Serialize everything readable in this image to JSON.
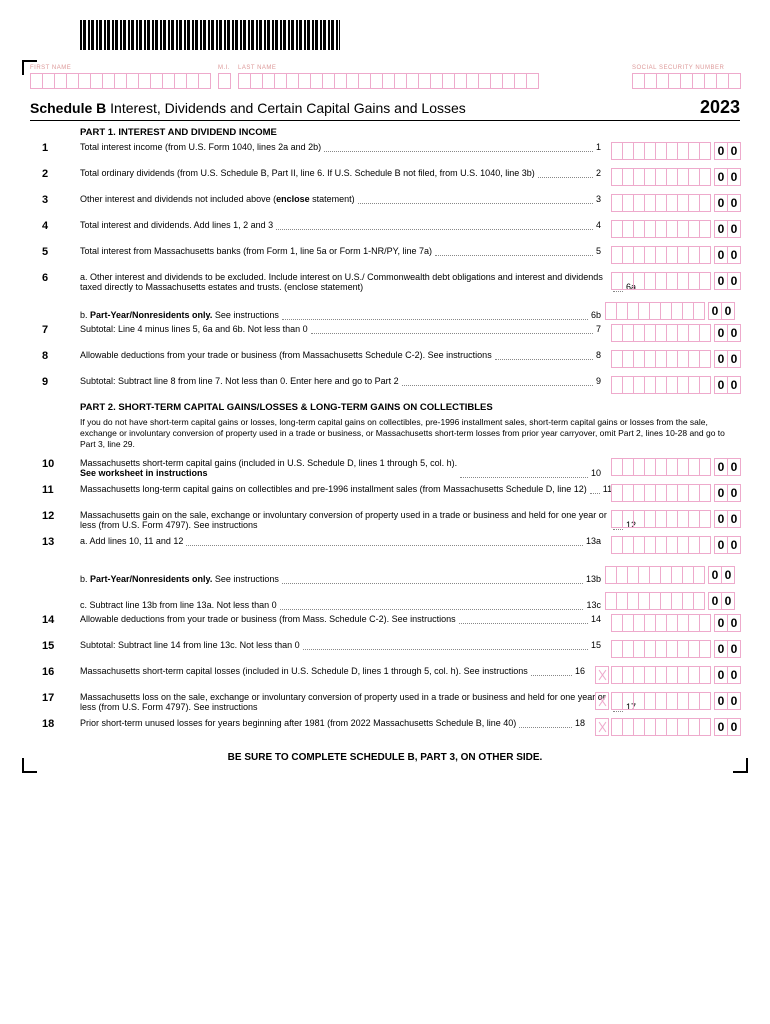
{
  "header": {
    "firstNameLabel": "FIRST NAME",
    "miLabel": "M.I.",
    "lastNameLabel": "LAST NAME",
    "ssnLabel": "SOCIAL SECURITY NUMBER"
  },
  "title": {
    "scheduleName": "Schedule B",
    "subtitle": "Interest, Dividends and Certain Capital Gains and Losses",
    "year": "2023"
  },
  "part1": {
    "header": "PART 1. INTEREST AND DIVIDEND INCOME",
    "lines": [
      {
        "num": "1",
        "text": "Total interest income (from U.S. Form 1040, lines 2a and 2b)",
        "ref": "1"
      },
      {
        "num": "2",
        "text": "Total ordinary dividends (from U.S. Schedule B, Part II, line 6. If U.S. Schedule B not filed, from U.S. 1040, line 3b)",
        "ref": "2"
      },
      {
        "num": "3",
        "text": "Other interest and dividends not included above (enclose statement)",
        "ref": "3",
        "bold": "enclose"
      },
      {
        "num": "4",
        "text": "Total interest and dividends. Add lines 1, 2 and 3",
        "ref": "4"
      },
      {
        "num": "5",
        "text": "Total interest from Massachusetts banks (from Form 1, line 5a or Form 1-NR/PY, line 7a)",
        "ref": "5"
      },
      {
        "num": "6",
        "text": "a. Other interest and dividends to be excluded. Include interest on U.S./ Commonwealth debt obligations and interest and dividends taxed directly to Massachusetts estates and trusts. (enclose statement)",
        "ref": "6a"
      },
      {
        "num": "",
        "text": "b. Part-Year/Nonresidents only. See instructions",
        "ref": "6b",
        "sub": true,
        "boldPrefix": "Part-Year/Nonresidents only."
      },
      {
        "num": "7",
        "text": "Subtotal: Line 4 minus lines 5, 6a and 6b. Not less than 0",
        "ref": "7"
      },
      {
        "num": "8",
        "text": "Allowable deductions from your trade or business (from Massachusetts Schedule C-2). See instructions",
        "ref": "8"
      },
      {
        "num": "9",
        "text": "Subtotal: Subtract line 8 from line 7. Not less than 0. Enter here and go to Part 2",
        "ref": "9"
      }
    ]
  },
  "part2": {
    "header": "PART 2. SHORT-TERM CAPITAL GAINS/LOSSES & LONG-TERM GAINS ON COLLECTIBLES",
    "intro": "If you do not have short-term capital gains or losses, long-term capital gains on collectibles, pre-1996 installment sales, short-term capital gains or losses from the sale, exchange or involuntary conversion of property used in a trade or business, or Massachusetts short-term losses from prior year carryover, omit Part 2, lines 10-28 and go to Part 3, line 29.",
    "lines": [
      {
        "num": "10",
        "text": "Massachusetts short-term capital gains (included in U.S. Schedule D, lines 1 through 5, col. h).",
        "boldSuffix": "See worksheet in instructions",
        "ref": "10"
      },
      {
        "num": "11",
        "text": "Massachusetts long-term capital gains on collectibles and pre-1996 installment sales (from Massachusetts Schedule D, line 12)",
        "ref": "11"
      },
      {
        "num": "12",
        "text": "Massachusetts gain on the sale, exchange or involuntary conversion of property used in a trade or business and held for one year or less (from U.S. Form 4797). See instructions",
        "ref": "12"
      },
      {
        "num": "13",
        "text": "a. Add lines 10, 11 and 12",
        "ref": "13a"
      },
      {
        "num": "",
        "text": "b. Part-Year/Nonresidents only. See instructions",
        "ref": "13b",
        "sub": true,
        "boldPrefix": "Part-Year/Nonresidents only."
      },
      {
        "num": "",
        "text": "c. Subtract line 13b from line 13a. Not less than 0",
        "ref": "13c",
        "sub": true
      },
      {
        "num": "14",
        "text": "Allowable deductions from your trade or business (from Mass. Schedule C-2). See instructions",
        "ref": "14"
      },
      {
        "num": "15",
        "text": "Subtotal: Subtract line 14 from line 13c. Not less than 0",
        "ref": "15"
      },
      {
        "num": "16",
        "text": "Massachusetts short-term capital losses (included in U.S. Schedule D, lines 1 through 5, col. h). See instructions",
        "ref": "16",
        "loss": true
      },
      {
        "num": "17",
        "text": "Massachusetts loss on the sale, exchange or involuntary conversion of property used in a trade or business and held for one year or less (from U.S. Form 4797). See instructions",
        "ref": "17",
        "loss": true
      },
      {
        "num": "18",
        "text": "Prior short-term unused losses for years beginning after 1981 (from 2022 Massachusetts Schedule B, line 40)",
        "ref": "18",
        "loss": true
      }
    ]
  },
  "footer": "BE SURE TO COMPLETE SCHEDULE B, PART 3, ON OTHER SIDE.",
  "cents": "0"
}
